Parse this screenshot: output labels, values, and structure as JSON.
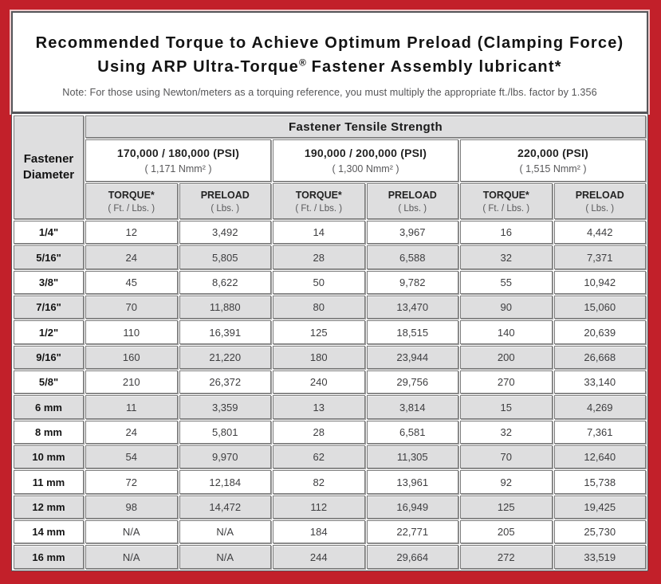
{
  "page": {
    "frame_color": "#C2202A",
    "panel_border_color": "#55565A"
  },
  "title": {
    "line1": "Recommended Torque to Achieve Optimum Preload (Clamping Force)",
    "line2_pre": "Using ARP Ultra-Torque",
    "line2_sup": "®",
    "line2_post": " Fastener Assembly lubricant*",
    "note": "Note: For those using Newton/meters as a torquing reference, you must multiply the appropriate ft./lbs. factor by 1.356"
  },
  "table": {
    "corner": {
      "line1": "Fastener",
      "line2": "Diameter"
    },
    "tensile_header": "Fastener Tensile Strength",
    "groups": [
      {
        "psi": "170,000 / 180,000 (PSI)",
        "nmm": "( 1,171 Nmm² )"
      },
      {
        "psi": "190,000 / 200,000 (PSI)",
        "nmm": "( 1,300 Nmm² )"
      },
      {
        "psi": "220,000 (PSI)",
        "nmm": "( 1,515 Nmm² )"
      }
    ],
    "col_headers": {
      "torque": "TORQUE*",
      "torque_unit": "( Ft. / Lbs. )",
      "preload": "PRELOAD",
      "preload_unit": "( Lbs. )"
    },
    "rows": [
      {
        "diameter": "1/4\"",
        "values": [
          "12",
          "3,492",
          "14",
          "3,967",
          "16",
          "4,442"
        ]
      },
      {
        "diameter": "5/16\"",
        "values": [
          "24",
          "5,805",
          "28",
          "6,588",
          "32",
          "7,371"
        ]
      },
      {
        "diameter": "3/8\"",
        "values": [
          "45",
          "8,622",
          "50",
          "9,782",
          "55",
          "10,942"
        ]
      },
      {
        "diameter": "7/16\"",
        "values": [
          "70",
          "11,880",
          "80",
          "13,470",
          "90",
          "15,060"
        ]
      },
      {
        "diameter": "1/2\"",
        "values": [
          "110",
          "16,391",
          "125",
          "18,515",
          "140",
          "20,639"
        ]
      },
      {
        "diameter": "9/16\"",
        "values": [
          "160",
          "21,220",
          "180",
          "23,944",
          "200",
          "26,668"
        ]
      },
      {
        "diameter": "5/8\"",
        "values": [
          "210",
          "26,372",
          "240",
          "29,756",
          "270",
          "33,140"
        ]
      },
      {
        "diameter": "6 mm",
        "values": [
          "11",
          "3,359",
          "13",
          "3,814",
          "15",
          "4,269"
        ]
      },
      {
        "diameter": "8 mm",
        "values": [
          "24",
          "5,801",
          "28",
          "6,581",
          "32",
          "7,361"
        ]
      },
      {
        "diameter": "10 mm",
        "values": [
          "54",
          "9,970",
          "62",
          "11,305",
          "70",
          "12,640"
        ]
      },
      {
        "diameter": "11 mm",
        "values": [
          "72",
          "12,184",
          "82",
          "13,961",
          "92",
          "15,738"
        ]
      },
      {
        "diameter": "12 mm",
        "values": [
          "98",
          "14,472",
          "112",
          "16,949",
          "125",
          "19,425"
        ]
      },
      {
        "diameter": "14 mm",
        "values": [
          "N/A",
          "N/A",
          "184",
          "22,771",
          "205",
          "25,730"
        ]
      },
      {
        "diameter": "16 mm",
        "values": [
          "N/A",
          "N/A",
          "244",
          "29,664",
          "272",
          "33,519"
        ]
      }
    ]
  }
}
